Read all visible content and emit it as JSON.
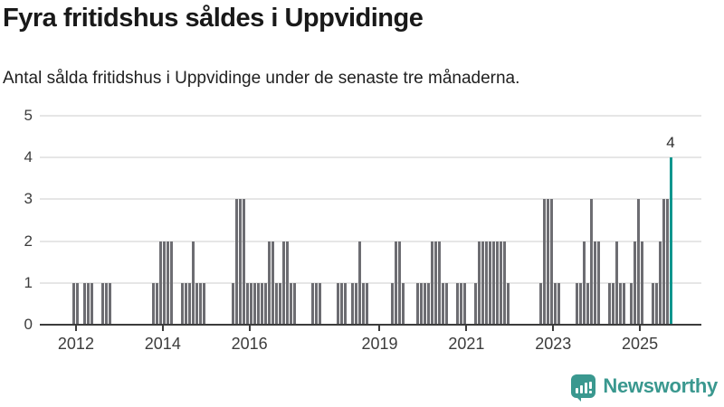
{
  "header": {
    "title": "Fyra fritidshus såldes i Uppvidinge",
    "subtitle": "Antal sålda fritidshus i Uppvidinge under de senaste tre månaderna."
  },
  "chart_data": {
    "type": "bar",
    "title": "Fyra fritidshus såldes i Uppvidinge",
    "subtitle": "Antal sålda fritidshus i Uppvidinge under de senaste tre månaderna.",
    "ylabel": "",
    "xlabel": "",
    "ylim": [
      0,
      5
    ],
    "grid": true,
    "start_month": "2011-04",
    "months_in_domain": 182,
    "values": [
      0,
      0,
      0,
      0,
      0,
      0,
      0,
      0,
      1,
      1,
      0,
      1,
      1,
      1,
      0,
      0,
      1,
      1,
      1,
      0,
      0,
      0,
      0,
      0,
      0,
      0,
      0,
      0,
      0,
      0,
      1,
      1,
      2,
      2,
      2,
      2,
      0,
      0,
      1,
      1,
      1,
      2,
      1,
      1,
      1,
      0,
      0,
      0,
      0,
      0,
      0,
      0,
      1,
      3,
      3,
      3,
      1,
      1,
      1,
      1,
      1,
      1,
      2,
      2,
      1,
      1,
      2,
      2,
      1,
      1,
      0,
      0,
      0,
      0,
      1,
      1,
      1,
      0,
      0,
      0,
      0,
      1,
      1,
      1,
      0,
      1,
      1,
      2,
      1,
      1,
      0,
      0,
      0,
      0,
      0,
      0,
      1,
      2,
      2,
      1,
      0,
      0,
      0,
      1,
      1,
      1,
      1,
      2,
      2,
      2,
      1,
      1,
      0,
      0,
      1,
      1,
      1,
      0,
      0,
      1,
      2,
      2,
      2,
      2,
      2,
      2,
      2,
      2,
      1,
      0,
      0,
      0,
      0,
      0,
      0,
      0,
      0,
      1,
      3,
      3,
      3,
      1,
      1,
      0,
      0,
      0,
      0,
      1,
      1,
      2,
      1,
      3,
      2,
      2,
      0,
      0,
      1,
      1,
      2,
      1,
      1,
      0,
      1,
      2,
      3,
      2,
      0,
      0,
      1,
      1,
      2,
      3,
      3,
      4
    ],
    "y_ticks": [
      "0",
      "1",
      "2",
      "3",
      "4",
      "5"
    ],
    "x_ticks": [
      {
        "label": "2012",
        "month_index": 9
      },
      {
        "label": "2014",
        "month_index": 33
      },
      {
        "label": "2016",
        "month_index": 57
      },
      {
        "label": "2019",
        "month_index": 93
      },
      {
        "label": "2021",
        "month_index": 117
      },
      {
        "label": "2023",
        "month_index": 141
      },
      {
        "label": "2025",
        "month_index": 165
      }
    ],
    "highlight_label": "4",
    "highlight_value": 4,
    "bar_color": "#6d6d72",
    "highlight_color": "#0e968e",
    "grid_color": "#e6e6e6",
    "axis_color": "#3c3c3c"
  },
  "footer": {
    "brand": "Newsworthy",
    "brand_color": "#3a988f"
  }
}
